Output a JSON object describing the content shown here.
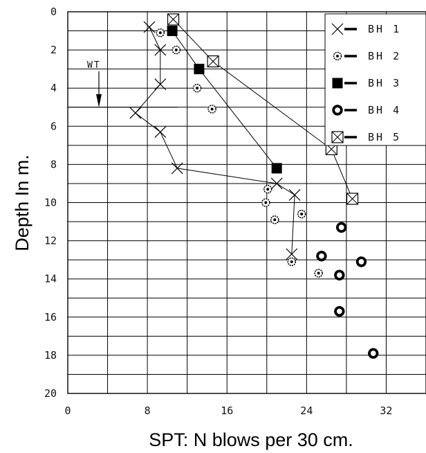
{
  "chart_data": {
    "type": "scatter",
    "title": "",
    "xlabel": "SPT: N blows per 30 cm.",
    "ylabel": "Depth In m.",
    "xlim": [
      0,
      36
    ],
    "ylim": [
      0,
      20
    ],
    "y_inverted": true,
    "x_ticks": [
      0,
      8,
      16,
      24,
      32
    ],
    "y_ticks": [
      0,
      2,
      4,
      6,
      8,
      10,
      12,
      14,
      16,
      18,
      20
    ],
    "grid": true,
    "legend_position": "top-right",
    "annotation": {
      "label": "WT",
      "depth": 5.0
    },
    "series": [
      {
        "name": "BH 1",
        "marker": "x",
        "connected": true,
        "points": [
          [
            8.2,
            0.8
          ],
          [
            9.3,
            2.0
          ],
          [
            9.3,
            3.8
          ],
          [
            6.8,
            5.3
          ],
          [
            9.3,
            6.3
          ],
          [
            11.0,
            8.2
          ],
          [
            21.0,
            9.0
          ],
          [
            22.8,
            9.6
          ],
          [
            22.5,
            12.7
          ]
        ]
      },
      {
        "name": "BH 2",
        "marker": "dotted-circle",
        "connected": false,
        "points": [
          [
            9.3,
            1.1
          ],
          [
            10.9,
            2.0
          ],
          [
            13.0,
            4.0
          ],
          [
            14.5,
            5.1
          ],
          [
            20.1,
            9.3
          ],
          [
            19.9,
            10.0
          ],
          [
            23.5,
            10.6
          ],
          [
            20.8,
            10.9
          ],
          [
            22.5,
            13.1
          ],
          [
            25.2,
            13.7
          ]
        ]
      },
      {
        "name": "BH 3",
        "marker": "filled-square",
        "connected": true,
        "points": [
          [
            10.5,
            1.0
          ],
          [
            13.2,
            3.0
          ],
          [
            21.0,
            8.2
          ]
        ]
      },
      {
        "name": "BH 4",
        "marker": "thick-circle",
        "connected": false,
        "points": [
          [
            27.5,
            11.3
          ],
          [
            25.5,
            12.8
          ],
          [
            29.5,
            13.1
          ],
          [
            27.3,
            13.8
          ],
          [
            27.3,
            15.7
          ],
          [
            30.7,
            17.9
          ]
        ]
      },
      {
        "name": "BH 5",
        "marker": "x-square",
        "connected": true,
        "points": [
          [
            10.6,
            0.4
          ],
          [
            14.6,
            2.6
          ],
          [
            26.5,
            7.2
          ],
          [
            28.6,
            9.8
          ]
        ]
      }
    ]
  }
}
